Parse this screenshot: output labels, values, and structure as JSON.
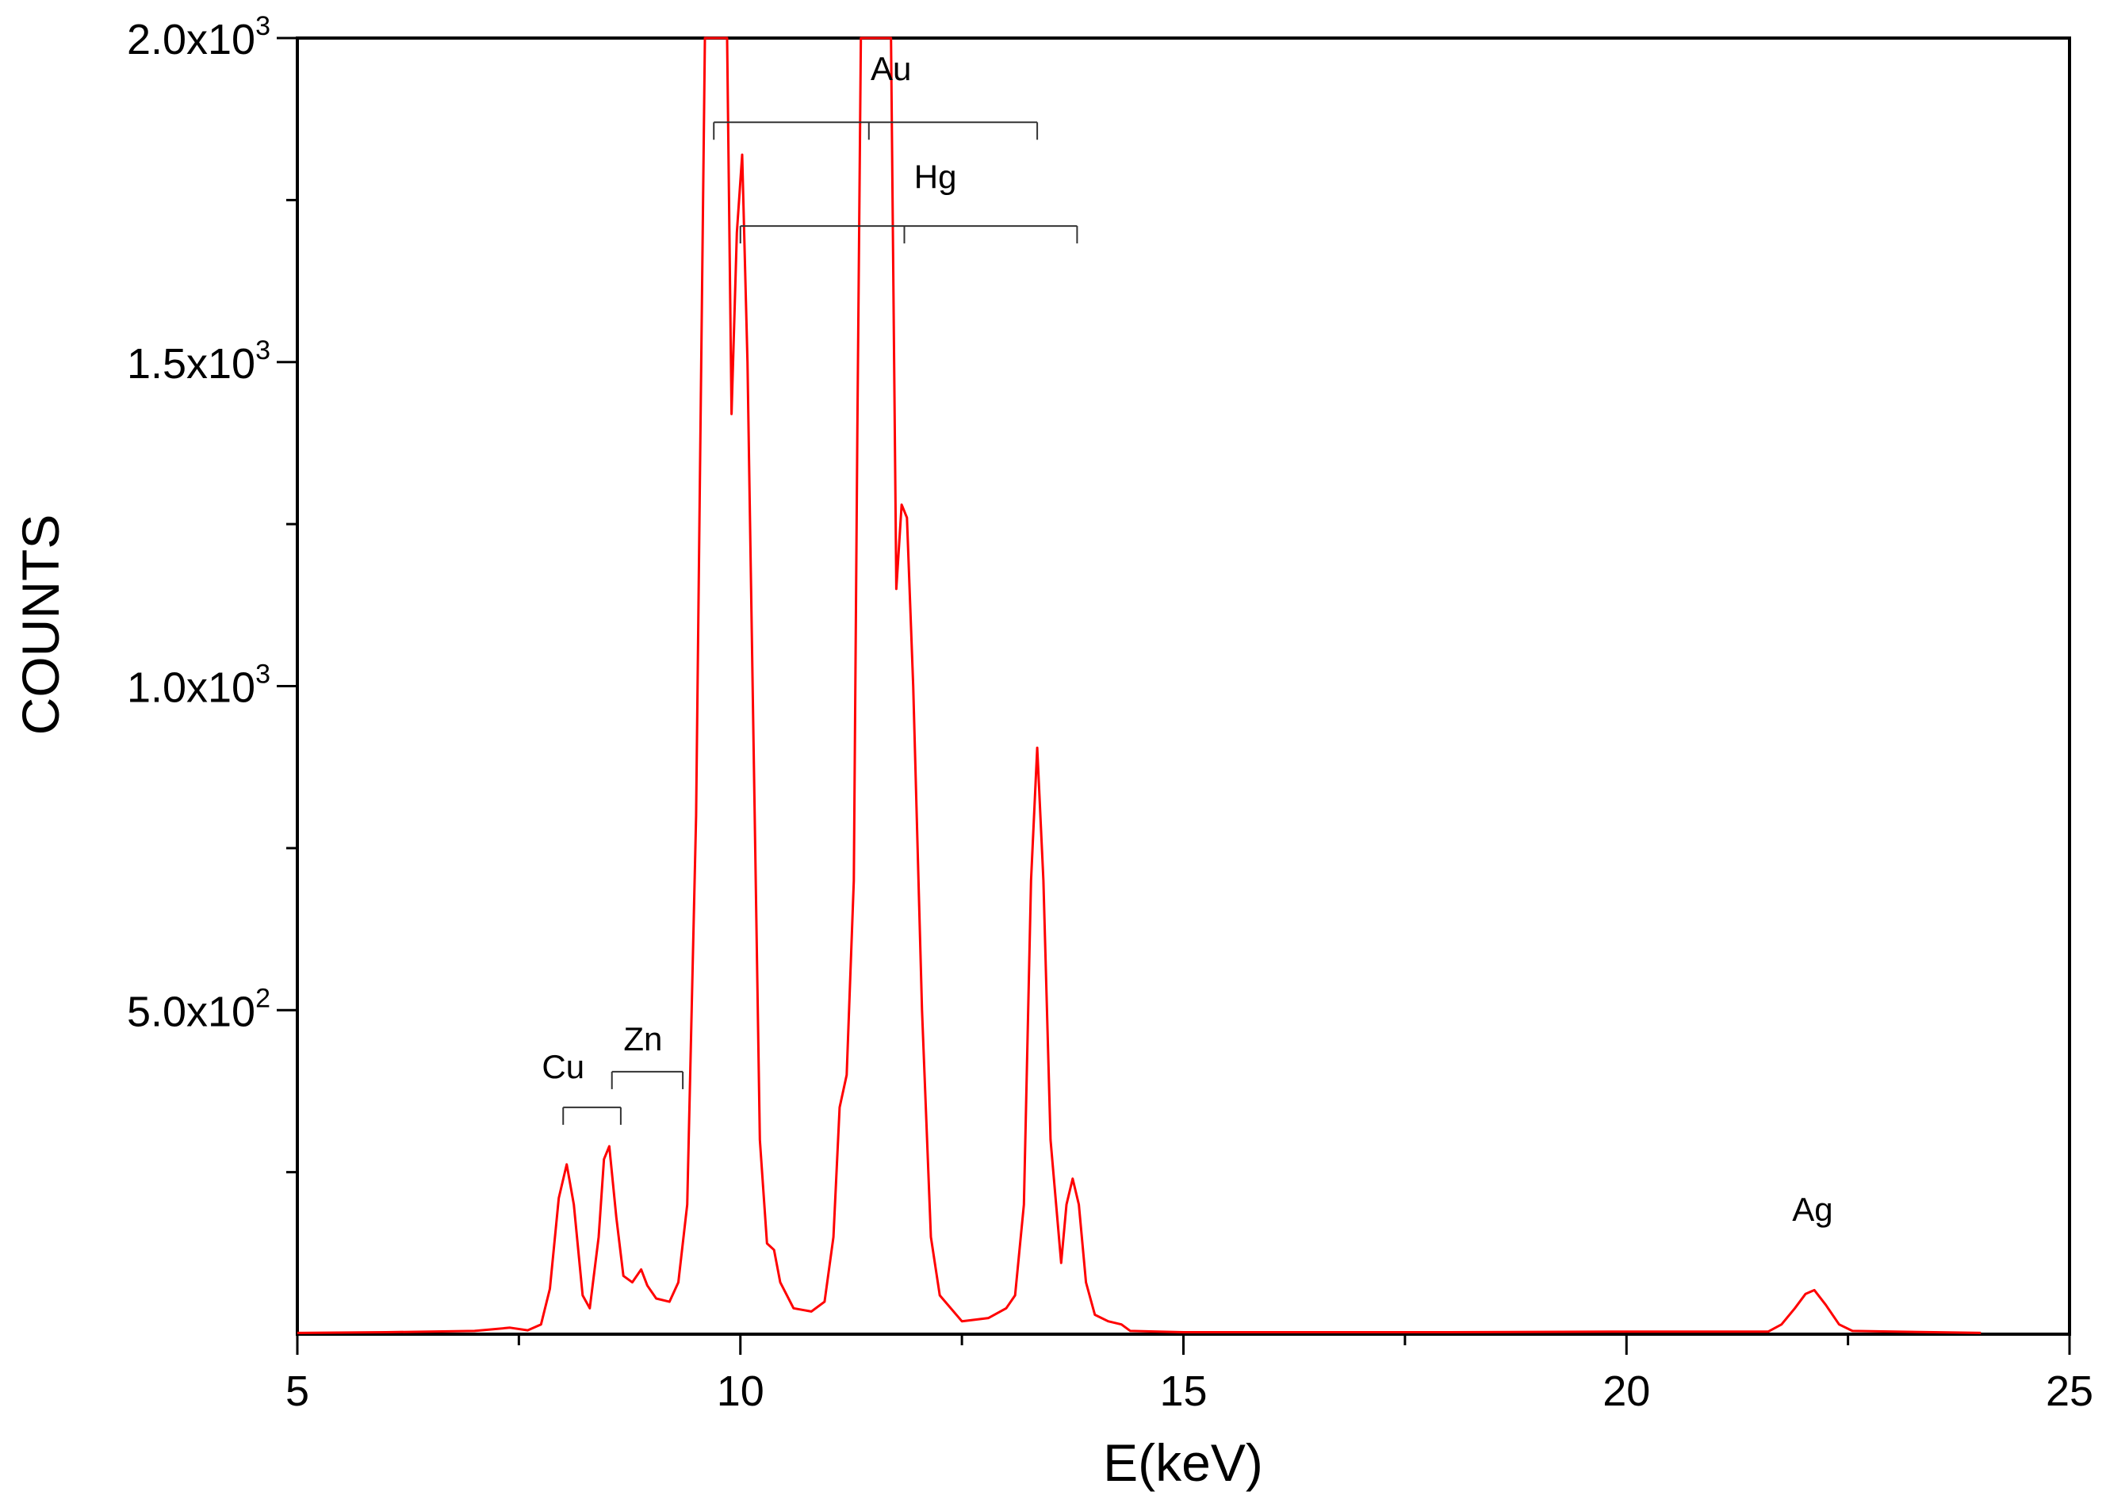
{
  "chart_data": {
    "type": "line",
    "xlabel": "E(keV)",
    "ylabel": "COUNTS",
    "xlim": [
      5,
      25
    ],
    "ylim": [
      0,
      2000
    ],
    "grid": false,
    "legend": "none",
    "x_ticks": [
      {
        "value": 5,
        "label": "5"
      },
      {
        "value": 10,
        "label": "10"
      },
      {
        "value": 15,
        "label": "15"
      },
      {
        "value": 20,
        "label": "20"
      },
      {
        "value": 25,
        "label": "25"
      }
    ],
    "x_minor_ticks": [
      7.5,
      12.5,
      17.5,
      22.5
    ],
    "y_ticks": [
      {
        "value": 500,
        "mantissa": "5.0x10",
        "exponent": "2"
      },
      {
        "value": 1000,
        "mantissa": "1.0x10",
        "exponent": "3"
      },
      {
        "value": 1500,
        "mantissa": "1.5x10",
        "exponent": "3"
      },
      {
        "value": 2000,
        "mantissa": "2.0x10",
        "exponent": "3"
      }
    ],
    "y_minor_ticks": [
      250,
      750,
      1250,
      1750
    ],
    "series": [
      {
        "color": "#ff0000",
        "points": [
          [
            5.0,
            2
          ],
          [
            6.0,
            3
          ],
          [
            7.0,
            5
          ],
          [
            7.4,
            10
          ],
          [
            7.6,
            6
          ],
          [
            7.75,
            15
          ],
          [
            7.85,
            70
          ],
          [
            7.95,
            210
          ],
          [
            8.04,
            262
          ],
          [
            8.12,
            200
          ],
          [
            8.22,
            60
          ],
          [
            8.3,
            40
          ],
          [
            8.4,
            150
          ],
          [
            8.46,
            270
          ],
          [
            8.52,
            290
          ],
          [
            8.6,
            180
          ],
          [
            8.68,
            90
          ],
          [
            8.78,
            80
          ],
          [
            8.88,
            100
          ],
          [
            8.95,
            75
          ],
          [
            9.05,
            55
          ],
          [
            9.2,
            50
          ],
          [
            9.3,
            80
          ],
          [
            9.4,
            200
          ],
          [
            9.5,
            800
          ],
          [
            9.6,
            2000
          ],
          [
            9.75,
            2000
          ],
          [
            9.85,
            2000
          ],
          [
            9.9,
            1420
          ],
          [
            9.96,
            1700
          ],
          [
            10.02,
            1820
          ],
          [
            10.08,
            1500
          ],
          [
            10.15,
            900
          ],
          [
            10.22,
            300
          ],
          [
            10.3,
            140
          ],
          [
            10.38,
            130
          ],
          [
            10.45,
            80
          ],
          [
            10.6,
            40
          ],
          [
            10.8,
            35
          ],
          [
            10.95,
            50
          ],
          [
            11.05,
            150
          ],
          [
            11.12,
            350
          ],
          [
            11.2,
            400
          ],
          [
            11.28,
            700
          ],
          [
            11.32,
            1400
          ],
          [
            11.36,
            2000
          ],
          [
            11.55,
            2000
          ],
          [
            11.7,
            2000
          ],
          [
            11.76,
            1150
          ],
          [
            11.82,
            1280
          ],
          [
            11.88,
            1260
          ],
          [
            11.95,
            1000
          ],
          [
            12.05,
            500
          ],
          [
            12.15,
            150
          ],
          [
            12.25,
            60
          ],
          [
            12.5,
            20
          ],
          [
            12.8,
            25
          ],
          [
            13.0,
            40
          ],
          [
            13.1,
            60
          ],
          [
            13.2,
            200
          ],
          [
            13.28,
            700
          ],
          [
            13.35,
            905
          ],
          [
            13.42,
            700
          ],
          [
            13.5,
            300
          ],
          [
            13.62,
            110
          ],
          [
            13.68,
            200
          ],
          [
            13.75,
            240
          ],
          [
            13.82,
            200
          ],
          [
            13.9,
            80
          ],
          [
            14.0,
            30
          ],
          [
            14.15,
            20
          ],
          [
            14.3,
            15
          ],
          [
            14.4,
            5
          ],
          [
            15.0,
            3
          ],
          [
            18.0,
            3
          ],
          [
            20.0,
            4
          ],
          [
            21.6,
            4
          ],
          [
            21.75,
            15
          ],
          [
            21.9,
            40
          ],
          [
            22.02,
            62
          ],
          [
            22.12,
            68
          ],
          [
            22.25,
            45
          ],
          [
            22.4,
            15
          ],
          [
            22.55,
            5
          ],
          [
            24.0,
            2
          ]
        ]
      }
    ],
    "annotations": [
      {
        "label": "Au",
        "label_x": 11.7,
        "label_y": 1935,
        "lines": [
          9.7,
          11.45,
          13.35
        ],
        "y": 1870
      },
      {
        "label": "Hg",
        "label_x": 12.2,
        "label_y": 1768,
        "lines": [
          10.0,
          11.85,
          13.8
        ],
        "y": 1710
      },
      {
        "label": "Cu",
        "label_x": 8.0,
        "label_y": 395,
        "lines": [
          8.0,
          8.65
        ],
        "y": 350
      },
      {
        "label": "Zn",
        "label_x": 8.9,
        "label_y": 438,
        "lines": [
          8.55,
          9.35
        ],
        "y": 405
      },
      {
        "label": "Ag",
        "label_x": 22.1,
        "label_y": 175,
        "lines": [],
        "y": 0
      }
    ]
  }
}
